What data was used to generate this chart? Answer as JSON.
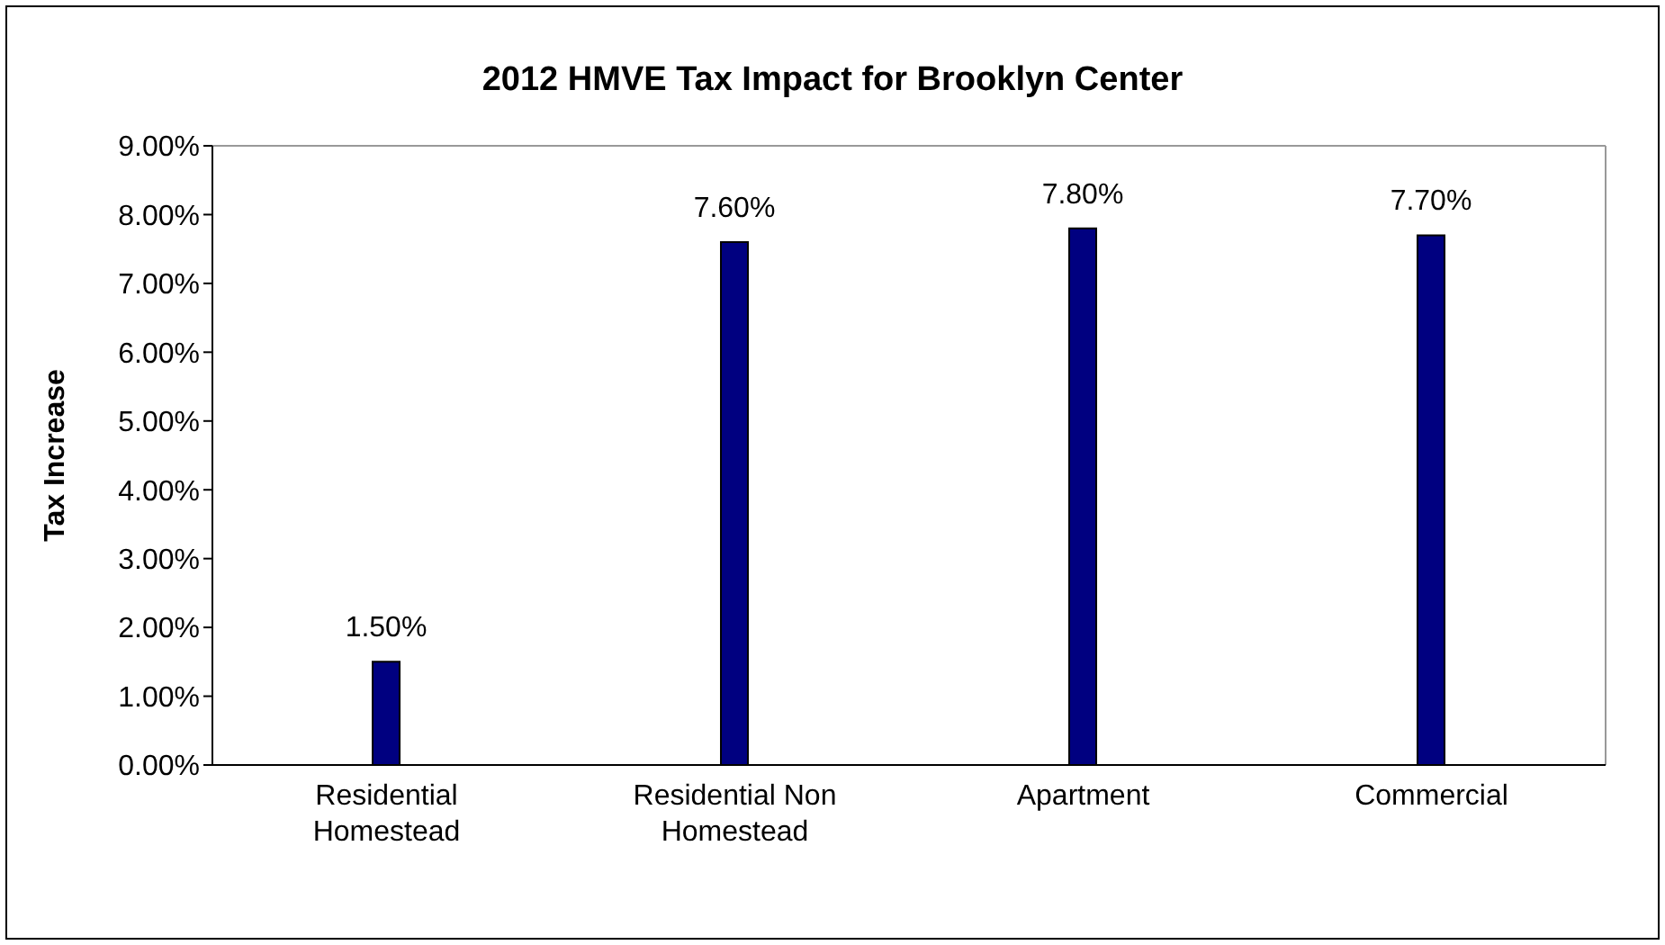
{
  "chart_data": {
    "type": "bar",
    "title": "2012 HMVE Tax Impact for Brooklyn Center",
    "ylabel": "Tax Increase",
    "categories": [
      "Residential Homestead",
      "Residential Non Homestead",
      "Apartment",
      "Commercial"
    ],
    "values": [
      1.5,
      7.6,
      7.8,
      7.7
    ],
    "value_labels": [
      "1.50%",
      "7.60%",
      "7.80%",
      "7.70%"
    ],
    "color": "#000080",
    "ylim": [
      0,
      9
    ],
    "yticks": [
      {
        "value": 0,
        "label": "0.00%"
      },
      {
        "value": 1,
        "label": "1.00%"
      },
      {
        "value": 2,
        "label": "2.00%"
      },
      {
        "value": 3,
        "label": "3.00%"
      },
      {
        "value": 4,
        "label": "4.00%"
      },
      {
        "value": 5,
        "label": "5.00%"
      },
      {
        "value": 6,
        "label": "6.00%"
      },
      {
        "value": 7,
        "label": "7.00%"
      },
      {
        "value": 8,
        "label": "8.00%"
      },
      {
        "value": 9,
        "label": "9.00%"
      }
    ],
    "grid": false,
    "legend": false
  }
}
